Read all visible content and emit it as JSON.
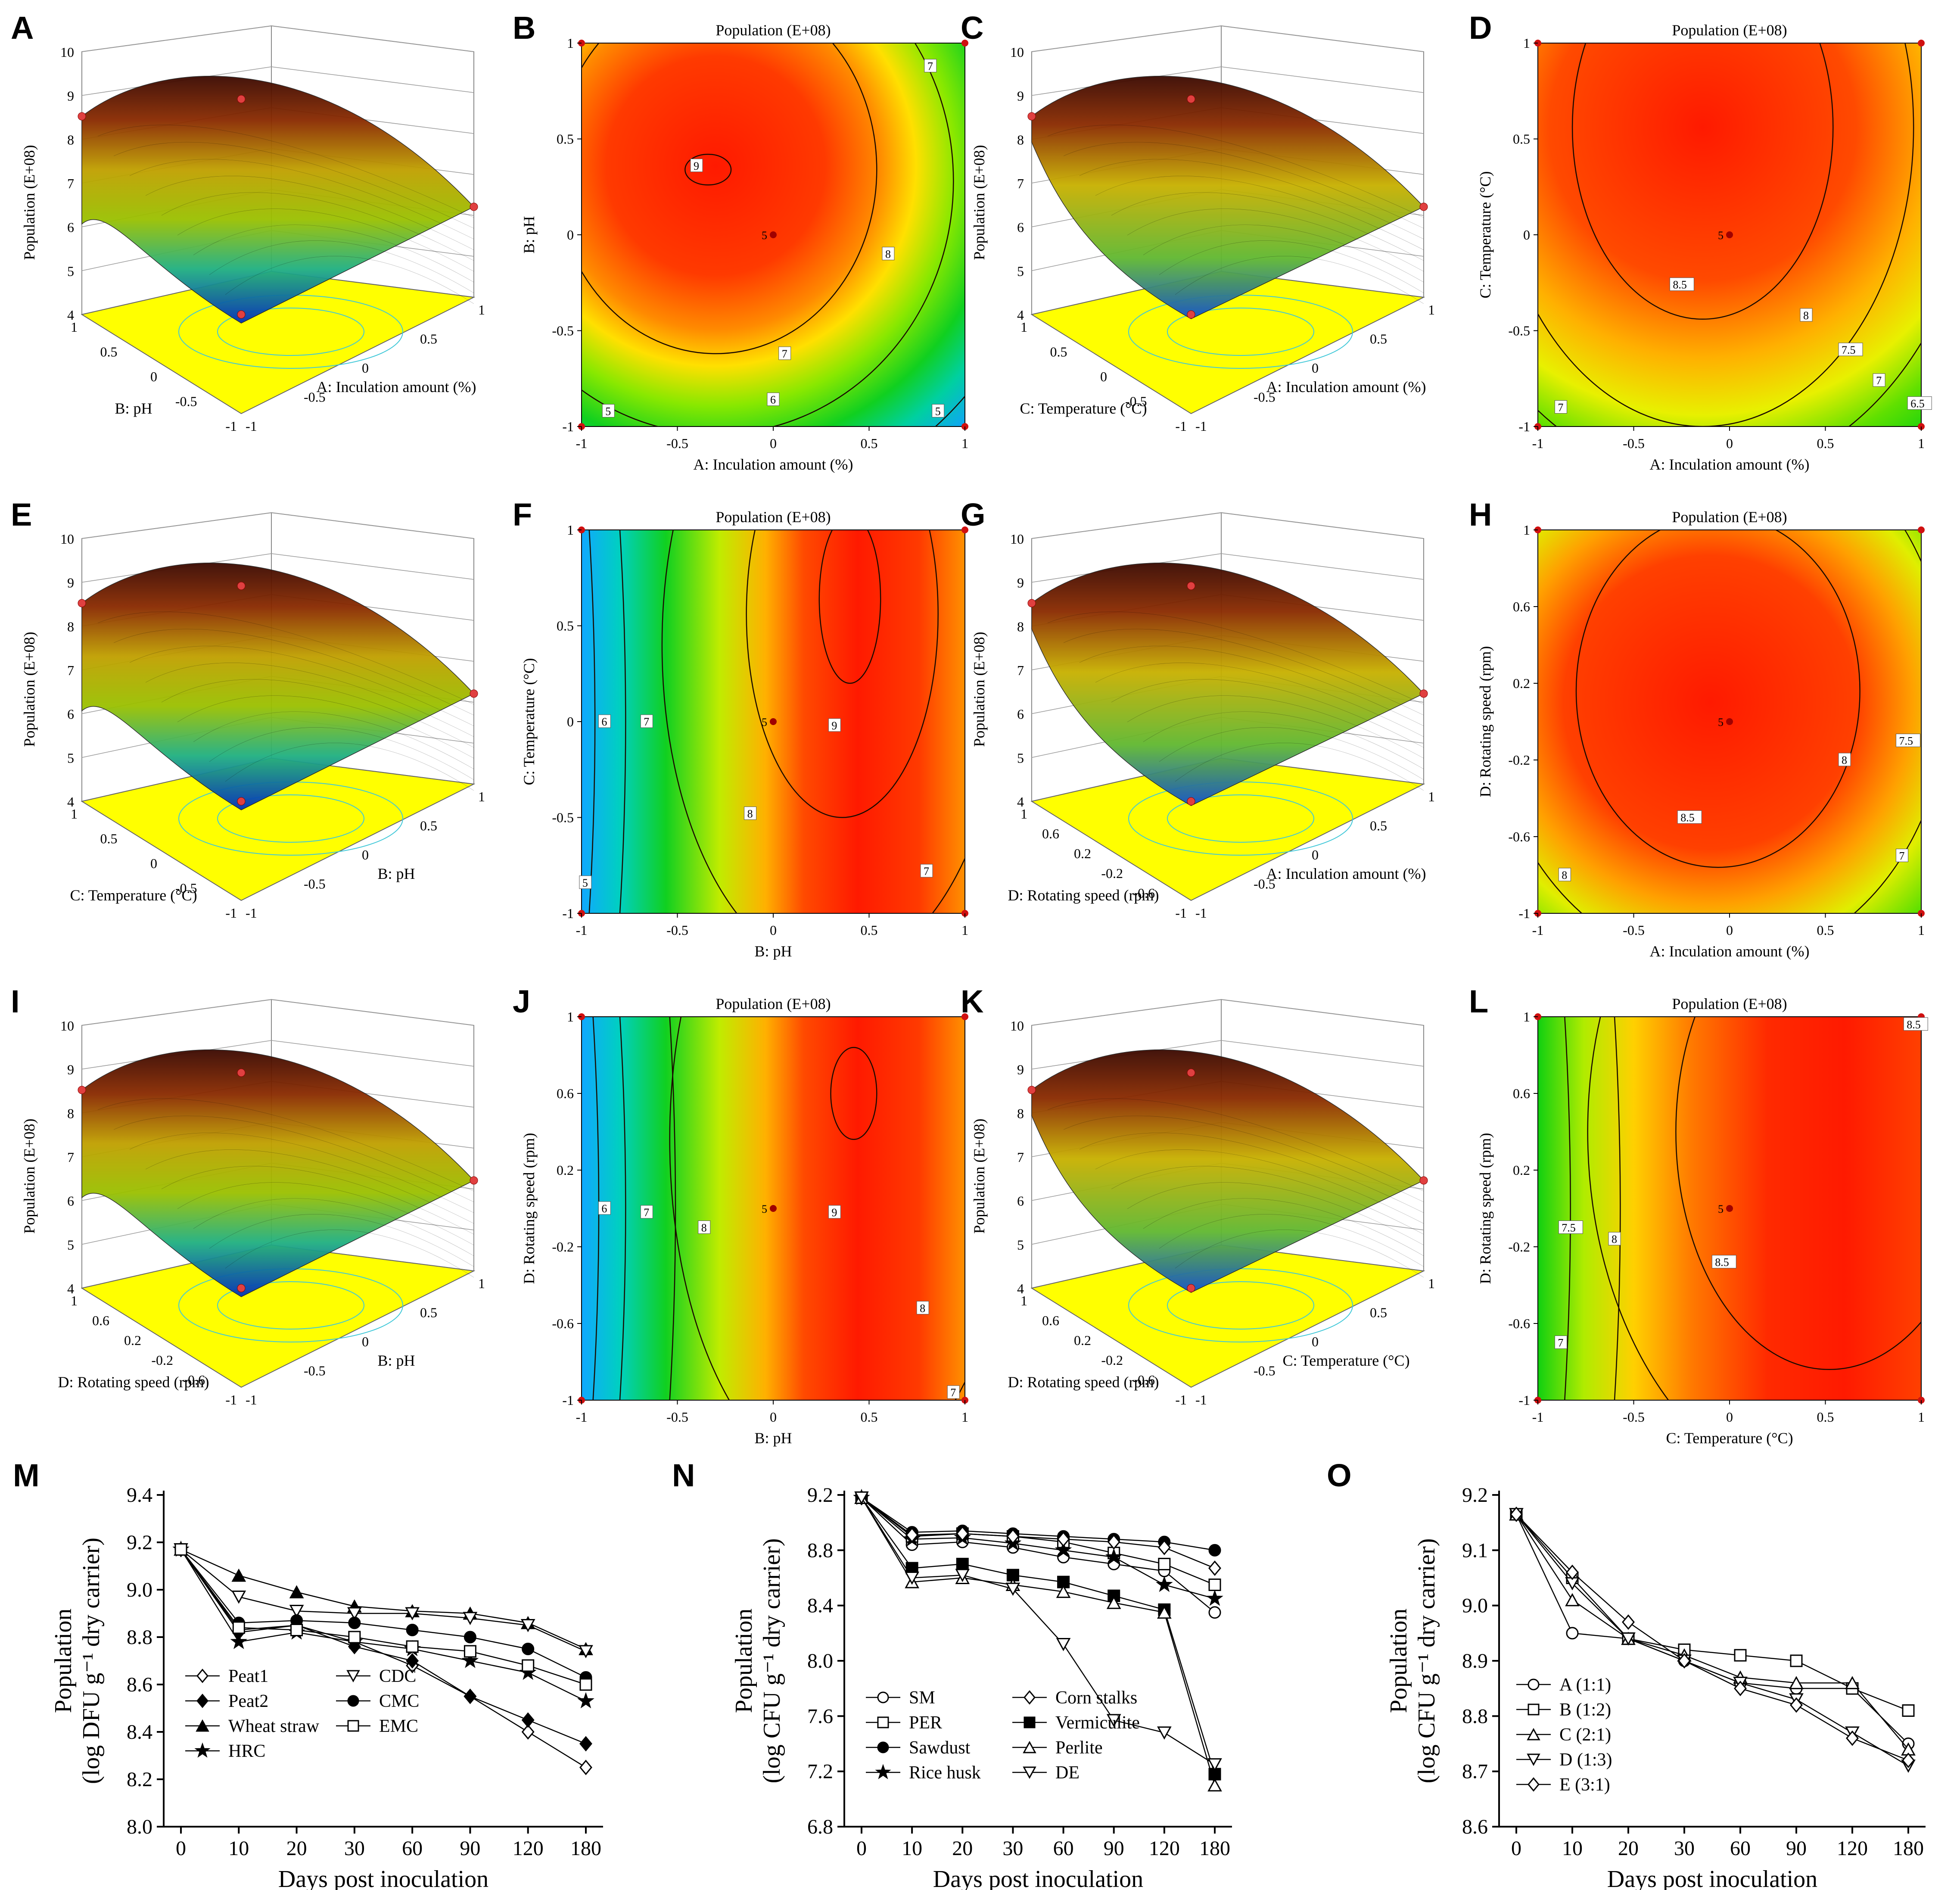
{
  "figure": {
    "surface_title": "Population (E+08)",
    "codes": {
      "A": "A: Inculation amount (%)",
      "B": "B: pH",
      "C": "C: Temperature (°C)",
      "D": "D: Rotating speed (rpm)"
    }
  },
  "rsm_panels": [
    {
      "id": "A",
      "kind": "surface3d",
      "x_factor": "A",
      "y_factor": "B",
      "z_label": "Population (E+08)",
      "z_ticks": [
        "4",
        "5",
        "6",
        "7",
        "8",
        "9",
        "10"
      ],
      "x_ticks": [
        "-1",
        "-0.5",
        "0",
        "0.5",
        "1"
      ],
      "y_ticks": [
        "-1",
        "-0.5",
        "0",
        "0.5",
        "1"
      ]
    },
    {
      "id": "B",
      "kind": "contour",
      "title": "Population (E+08)",
      "x_factor": "A",
      "y_factor": "B",
      "x_ticks": [
        "-1",
        "-0.5",
        "0",
        "0.5",
        "1"
      ],
      "y_ticks": [
        "-1",
        "-0.5",
        "0",
        "0.5",
        "1"
      ],
      "center_label": "5",
      "contour_labels": [
        "9",
        "8",
        "7",
        "6",
        "5",
        "5",
        "7"
      ]
    },
    {
      "id": "C",
      "kind": "surface3d",
      "x_factor": "A",
      "y_factor": "C",
      "z_label": "Population (E+08)",
      "z_ticks": [
        "4",
        "5",
        "6",
        "7",
        "8",
        "9",
        "10"
      ],
      "x_ticks": [
        "-1",
        "-0.5",
        "0",
        "0.5",
        "1"
      ],
      "y_ticks": [
        "-1",
        "-0.5",
        "0",
        "0.5",
        "1"
      ]
    },
    {
      "id": "D",
      "kind": "contour",
      "title": "Population (E+08)",
      "x_factor": "A",
      "y_factor": "C",
      "x_ticks": [
        "-1",
        "-0.5",
        "0",
        "0.5",
        "1"
      ],
      "y_ticks": [
        "-1",
        "-0.5",
        "0",
        "0.5",
        "1"
      ],
      "center_label": "5",
      "contour_labels": [
        "8.5",
        "8",
        "7.5",
        "7",
        "6.5",
        "7"
      ]
    },
    {
      "id": "E",
      "kind": "surface3d",
      "x_factor": "B",
      "y_factor": "C",
      "z_label": "Population (E+08)",
      "z_ticks": [
        "4",
        "5",
        "6",
        "7",
        "8",
        "9",
        "10"
      ],
      "x_ticks": [
        "-1",
        "-0.5",
        "0",
        "0.5",
        "1"
      ],
      "y_ticks": [
        "-1",
        "-0.5",
        "0",
        "0.5",
        "1"
      ]
    },
    {
      "id": "F",
      "kind": "contour",
      "title": "Population (E+08)",
      "x_factor": "B",
      "y_factor": "C",
      "x_ticks": [
        "-1",
        "-0.5",
        "0",
        "0.5",
        "1"
      ],
      "y_ticks": [
        "-1",
        "-0.5",
        "0",
        "0.5",
        "1"
      ],
      "center_label": "5",
      "contour_labels": [
        "9",
        "8",
        "7",
        "6",
        "5",
        "7"
      ]
    },
    {
      "id": "G",
      "kind": "surface3d",
      "x_factor": "A",
      "y_factor": "D",
      "z_label": "Population (E+08)",
      "z_ticks": [
        "4",
        "5",
        "6",
        "7",
        "8",
        "9",
        "10"
      ],
      "x_ticks": [
        "-1",
        "-0.5",
        "0",
        "0.5",
        "1"
      ],
      "y_ticks": [
        "-1",
        "-0.6",
        "-0.2",
        "0.2",
        "0.6",
        "1"
      ]
    },
    {
      "id": "H",
      "kind": "contour",
      "title": "Population (E+08)",
      "x_factor": "A",
      "y_factor": "D",
      "x_ticks": [
        "-1",
        "-0.5",
        "0",
        "0.5",
        "1"
      ],
      "y_ticks": [
        "-1",
        "-0.6",
        "-0.2",
        "0.2",
        "0.6",
        "1"
      ],
      "center_label": "5",
      "contour_labels": [
        "8.5",
        "8",
        "7.5",
        "8",
        "7"
      ]
    },
    {
      "id": "I",
      "kind": "surface3d",
      "x_factor": "B",
      "y_factor": "D",
      "z_label": "Population (E+08)",
      "z_ticks": [
        "4",
        "5",
        "6",
        "7",
        "8",
        "9",
        "10"
      ],
      "x_ticks": [
        "-1",
        "-0.5",
        "0",
        "0.5",
        "1"
      ],
      "y_ticks": [
        "-1",
        "-0.6",
        "-0.2",
        "0.2",
        "0.6",
        "1"
      ]
    },
    {
      "id": "J",
      "kind": "contour",
      "title": "Population (E+08)",
      "x_factor": "B",
      "y_factor": "D",
      "x_ticks": [
        "-1",
        "-0.5",
        "0",
        "0.5",
        "1"
      ],
      "y_ticks": [
        "-1",
        "-0.6",
        "-0.2",
        "0.2",
        "0.6",
        "1"
      ],
      "center_label": "5",
      "contour_labels": [
        "9",
        "8",
        "7",
        "6",
        "8",
        "7"
      ]
    },
    {
      "id": "K",
      "kind": "surface3d",
      "x_factor": "C",
      "y_factor": "D",
      "z_label": "Population (E+08)",
      "z_ticks": [
        "4",
        "5",
        "6",
        "7",
        "8",
        "9",
        "10"
      ],
      "x_ticks": [
        "-1",
        "-0.5",
        "0",
        "0.5",
        "1"
      ],
      "y_ticks": [
        "-1",
        "-0.6",
        "-0.2",
        "0.2",
        "0.6",
        "1"
      ]
    },
    {
      "id": "L",
      "kind": "contour",
      "title": "Population (E+08)",
      "x_factor": "C",
      "y_factor": "D",
      "x_ticks": [
        "-1",
        "-0.5",
        "0",
        "0.5",
        "1"
      ],
      "y_ticks": [
        "-1",
        "-0.6",
        "-0.2",
        "0.2",
        "0.6",
        "1"
      ],
      "center_label": "5",
      "contour_labels": [
        "8.5",
        "8",
        "7.5",
        "7",
        "8.5"
      ]
    }
  ],
  "chart_data": [
    {
      "id": "M",
      "type": "line",
      "categories": [
        "0",
        "10",
        "20",
        "30",
        "60",
        "90",
        "120",
        "180"
      ],
      "xlabel": "Days post inoculation",
      "ylabel_line1": "Population",
      "ylabel_line2": "(log DFU g⁻¹ dry carrier)",
      "ylim": [
        8.0,
        9.4
      ],
      "y_ticks": [
        "8.0",
        "8.2",
        "8.4",
        "8.6",
        "8.8",
        "9.0",
        "9.2",
        "9.4"
      ],
      "series": [
        {
          "name": "Peat1",
          "marker": "diamond-open",
          "values": [
            9.17,
            8.83,
            8.85,
            8.78,
            8.68,
            8.55,
            8.4,
            8.25
          ]
        },
        {
          "name": "Peat2",
          "marker": "diamond-filled",
          "values": [
            9.17,
            8.82,
            8.85,
            8.76,
            8.7,
            8.55,
            8.45,
            8.35
          ]
        },
        {
          "name": "Wheat straw",
          "marker": "triangle-filled",
          "values": [
            9.17,
            9.06,
            8.99,
            8.93,
            8.91,
            8.9,
            8.86,
            8.75
          ]
        },
        {
          "name": "HRC",
          "marker": "star",
          "values": [
            9.17,
            8.78,
            8.82,
            8.78,
            8.75,
            8.7,
            8.65,
            8.53
          ]
        },
        {
          "name": "CDC",
          "marker": "triangle-down-open",
          "values": [
            9.17,
            8.97,
            8.91,
            8.9,
            8.9,
            8.88,
            8.85,
            8.74
          ]
        },
        {
          "name": "CMC",
          "marker": "circle-filled",
          "values": [
            9.17,
            8.86,
            8.87,
            8.86,
            8.83,
            8.8,
            8.75,
            8.63
          ]
        },
        {
          "name": "EMC",
          "marker": "square-open",
          "values": [
            9.17,
            8.84,
            8.83,
            8.8,
            8.76,
            8.74,
            8.68,
            8.6
          ]
        }
      ]
    },
    {
      "id": "N",
      "type": "line",
      "categories": [
        "0",
        "10",
        "20",
        "30",
        "60",
        "90",
        "120",
        "180"
      ],
      "xlabel": "Days post inoculation",
      "ylabel_line1": "Population",
      "ylabel_line2": "(log CFU g⁻¹ dry carrier)",
      "ylim": [
        6.8,
        9.2
      ],
      "y_ticks": [
        "6.8",
        "7.2",
        "7.6",
        "8.0",
        "8.4",
        "8.8",
        "9.2"
      ],
      "series": [
        {
          "name": "SM",
          "marker": "circle-open",
          "values": [
            9.18,
            8.84,
            8.86,
            8.82,
            8.75,
            8.7,
            8.65,
            8.35
          ]
        },
        {
          "name": "PER",
          "marker": "square-open",
          "values": [
            9.18,
            8.9,
            8.92,
            8.9,
            8.86,
            8.78,
            8.7,
            8.55
          ]
        },
        {
          "name": "Sawdust",
          "marker": "circle-filled",
          "values": [
            9.18,
            8.93,
            8.94,
            8.92,
            8.9,
            8.88,
            8.86,
            8.8
          ]
        },
        {
          "name": "Rice husk",
          "marker": "star",
          "values": [
            9.18,
            8.88,
            8.89,
            8.85,
            8.8,
            8.75,
            8.55,
            8.45
          ]
        },
        {
          "name": "Corn stalks",
          "marker": "diamond-open",
          "values": [
            9.18,
            8.91,
            8.92,
            8.9,
            8.88,
            8.86,
            8.82,
            8.67
          ]
        },
        {
          "name": "Vermiculite",
          "marker": "square-filled",
          "values": [
            9.18,
            8.67,
            8.7,
            8.62,
            8.57,
            8.47,
            8.37,
            7.18
          ]
        },
        {
          "name": "Perlite",
          "marker": "triangle-open",
          "values": [
            9.18,
            8.57,
            8.6,
            8.55,
            8.5,
            8.42,
            8.35,
            7.1
          ]
        },
        {
          "name": "DE",
          "marker": "triangle-down-open",
          "values": [
            9.18,
            8.6,
            8.62,
            8.52,
            8.12,
            7.57,
            7.48,
            7.25
          ]
        }
      ]
    },
    {
      "id": "O",
      "type": "line",
      "categories": [
        "0",
        "10",
        "20",
        "30",
        "60",
        "90",
        "120",
        "180"
      ],
      "xlabel": "Days post inoculation",
      "ylabel_line1": "Population",
      "ylabel_line2": "(log CFU g⁻¹ dry carrier)",
      "ylim": [
        8.6,
        9.2
      ],
      "y_ticks": [
        "8.6",
        "8.7",
        "8.8",
        "8.9",
        "9.0",
        "9.1",
        "9.2"
      ],
      "series": [
        {
          "name": "A (1:1)",
          "marker": "circle-open",
          "values": [
            9.165,
            8.95,
            8.94,
            8.9,
            8.86,
            8.85,
            8.85,
            8.75
          ]
        },
        {
          "name": "B (1:2)",
          "marker": "square-open",
          "values": [
            9.165,
            9.05,
            8.94,
            8.92,
            8.91,
            8.9,
            8.85,
            8.81
          ]
        },
        {
          "name": "C (2:1)",
          "marker": "triangle-open",
          "values": [
            9.165,
            9.01,
            8.94,
            8.91,
            8.87,
            8.86,
            8.86,
            8.74
          ]
        },
        {
          "name": "D (1:3)",
          "marker": "triangle-down-open",
          "values": [
            9.165,
            9.04,
            8.94,
            8.9,
            8.86,
            8.83,
            8.77,
            8.71
          ]
        },
        {
          "name": "E (3:1)",
          "marker": "diamond-open",
          "values": [
            9.165,
            9.06,
            8.97,
            8.9,
            8.85,
            8.82,
            8.76,
            8.72
          ]
        }
      ]
    }
  ]
}
